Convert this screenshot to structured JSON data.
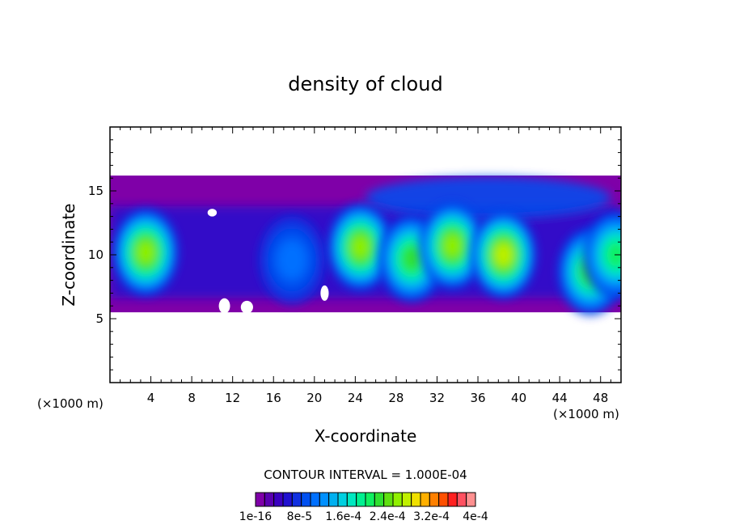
{
  "chart_data": {
    "type": "heatmap",
    "title": "density of cloud",
    "xlabel": "X-coordinate",
    "ylabel": "Z-coordinate",
    "x_unit_label": "(×1000 m)",
    "y_unit_label": "(×1000 m)",
    "xlim": [
      0,
      50
    ],
    "ylim": [
      0,
      20
    ],
    "x_ticks": [
      4,
      8,
      12,
      16,
      20,
      24,
      28,
      32,
      36,
      40,
      44,
      48
    ],
    "x_tick_labels": [
      "4",
      "8",
      "12",
      "16",
      "20",
      "24",
      "28",
      "32",
      "36",
      "40",
      "44",
      "48"
    ],
    "y_ticks": [
      5,
      10,
      15
    ],
    "y_tick_labels": [
      "5",
      "10",
      "15"
    ],
    "contour_interval_text": "CONTOUR INTERVAL = 1.000E-04",
    "colorbar": {
      "levels": 24,
      "colors": [
        "#7f00a8",
        "#5a00b0",
        "#3a00c0",
        "#2010d0",
        "#1030e0",
        "#0050f0",
        "#0070ff",
        "#0090ff",
        "#00b0f0",
        "#00d0e0",
        "#00e8c0",
        "#00f090",
        "#10f060",
        "#30e030",
        "#60e010",
        "#90f000",
        "#c0f000",
        "#f0e000",
        "#ffb000",
        "#ff8000",
        "#ff5000",
        "#ff2020",
        "#ff5060",
        "#ff9090"
      ],
      "labels": [
        "1e-16",
        "8e-5",
        "1.6e-4",
        "2.4e-4",
        "3.2e-4",
        "4e-4"
      ]
    },
    "cloud_layer": {
      "top_z": 16.2,
      "base_z": 5.5,
      "cores": [
        {
          "x": 3.5,
          "z": 10.2,
          "level": 15
        },
        {
          "x": 17.8,
          "z": 9.6,
          "level": 6
        },
        {
          "x": 24.5,
          "z": 10.6,
          "level": 15
        },
        {
          "x": 29.5,
          "z": 9.7,
          "level": 13
        },
        {
          "x": 33.5,
          "z": 10.7,
          "level": 15
        },
        {
          "x": 38.5,
          "z": 10.0,
          "level": 16
        },
        {
          "x": 47.0,
          "z": 8.7,
          "level": 13
        },
        {
          "x": 49.5,
          "z": 10.0,
          "level": 12
        }
      ]
    }
  }
}
